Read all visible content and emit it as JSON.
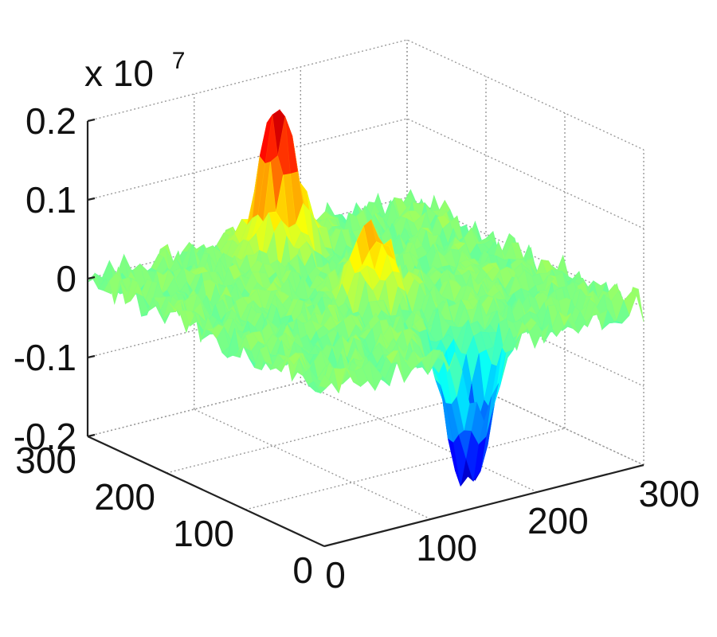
{
  "chart_data": {
    "type": "surface",
    "title": "",
    "xlabel": "",
    "ylabel": "",
    "zlabel": "",
    "z_exponent_label": "x 10",
    "z_exponent_power": "7",
    "x_ticks": [
      "0",
      "100",
      "200",
      "300"
    ],
    "y_ticks": [
      "0",
      "100",
      "200",
      "300"
    ],
    "z_ticks": [
      "-0.2",
      "-0.1",
      "0",
      "0.1",
      "0.2"
    ],
    "x_range": [
      0,
      300
    ],
    "y_range": [
      0,
      300
    ],
    "z_range": [
      -0.2,
      0.2
    ],
    "z_scale": 10000000,
    "grid": true,
    "colormap": "jet",
    "surface": {
      "baseline": 0,
      "noise_amplitude": 0.02,
      "features": [
        {
          "kind": "peak",
          "x": 150,
          "y": 260,
          "z": 0.18
        },
        {
          "kind": "peak",
          "x": 150,
          "y": 140,
          "z": 0.085
        },
        {
          "kind": "trough",
          "x": 150,
          "y": 20,
          "z": -0.19
        }
      ]
    }
  }
}
